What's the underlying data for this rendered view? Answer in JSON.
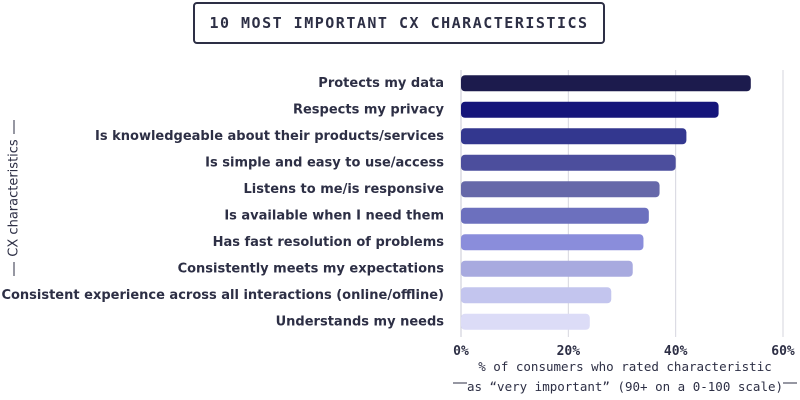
{
  "chart_data": {
    "type": "bar",
    "orientation": "horizontal",
    "title": "10 MOST IMPORTANT CX CHARACTERISTICS",
    "ylabel": "CX characteristics",
    "xlabel_lines": [
      "% of consumers who rated characteristic",
      "as “very important” (90+ on a 0-100 scale)"
    ],
    "categories": [
      "Protects my data",
      "Respects my privacy",
      "Is knowledgeable about their products/services",
      "Is simple and easy to use/access",
      "Listens to me/is responsive",
      "Is available when I need them",
      "Has fast resolution of problems",
      "Consistently meets my expectations",
      "Consistent experience across all interactions (online/offline)",
      "Understands my needs"
    ],
    "values": [
      54,
      48,
      42,
      40,
      37,
      35,
      34,
      32,
      28,
      24
    ],
    "colors": [
      "#1c1b4d",
      "#15157a",
      "#33378f",
      "#4c4e9d",
      "#6668a9",
      "#6c70be",
      "#8a8ddb",
      "#a8aadf",
      "#c3c5ee",
      "#dcdcf7"
    ],
    "xlim": [
      0,
      60
    ],
    "xticks": [
      0,
      20,
      40,
      60
    ],
    "xtick_labels": [
      "0%",
      "20%",
      "40%",
      "60%"
    ],
    "grid": true
  }
}
